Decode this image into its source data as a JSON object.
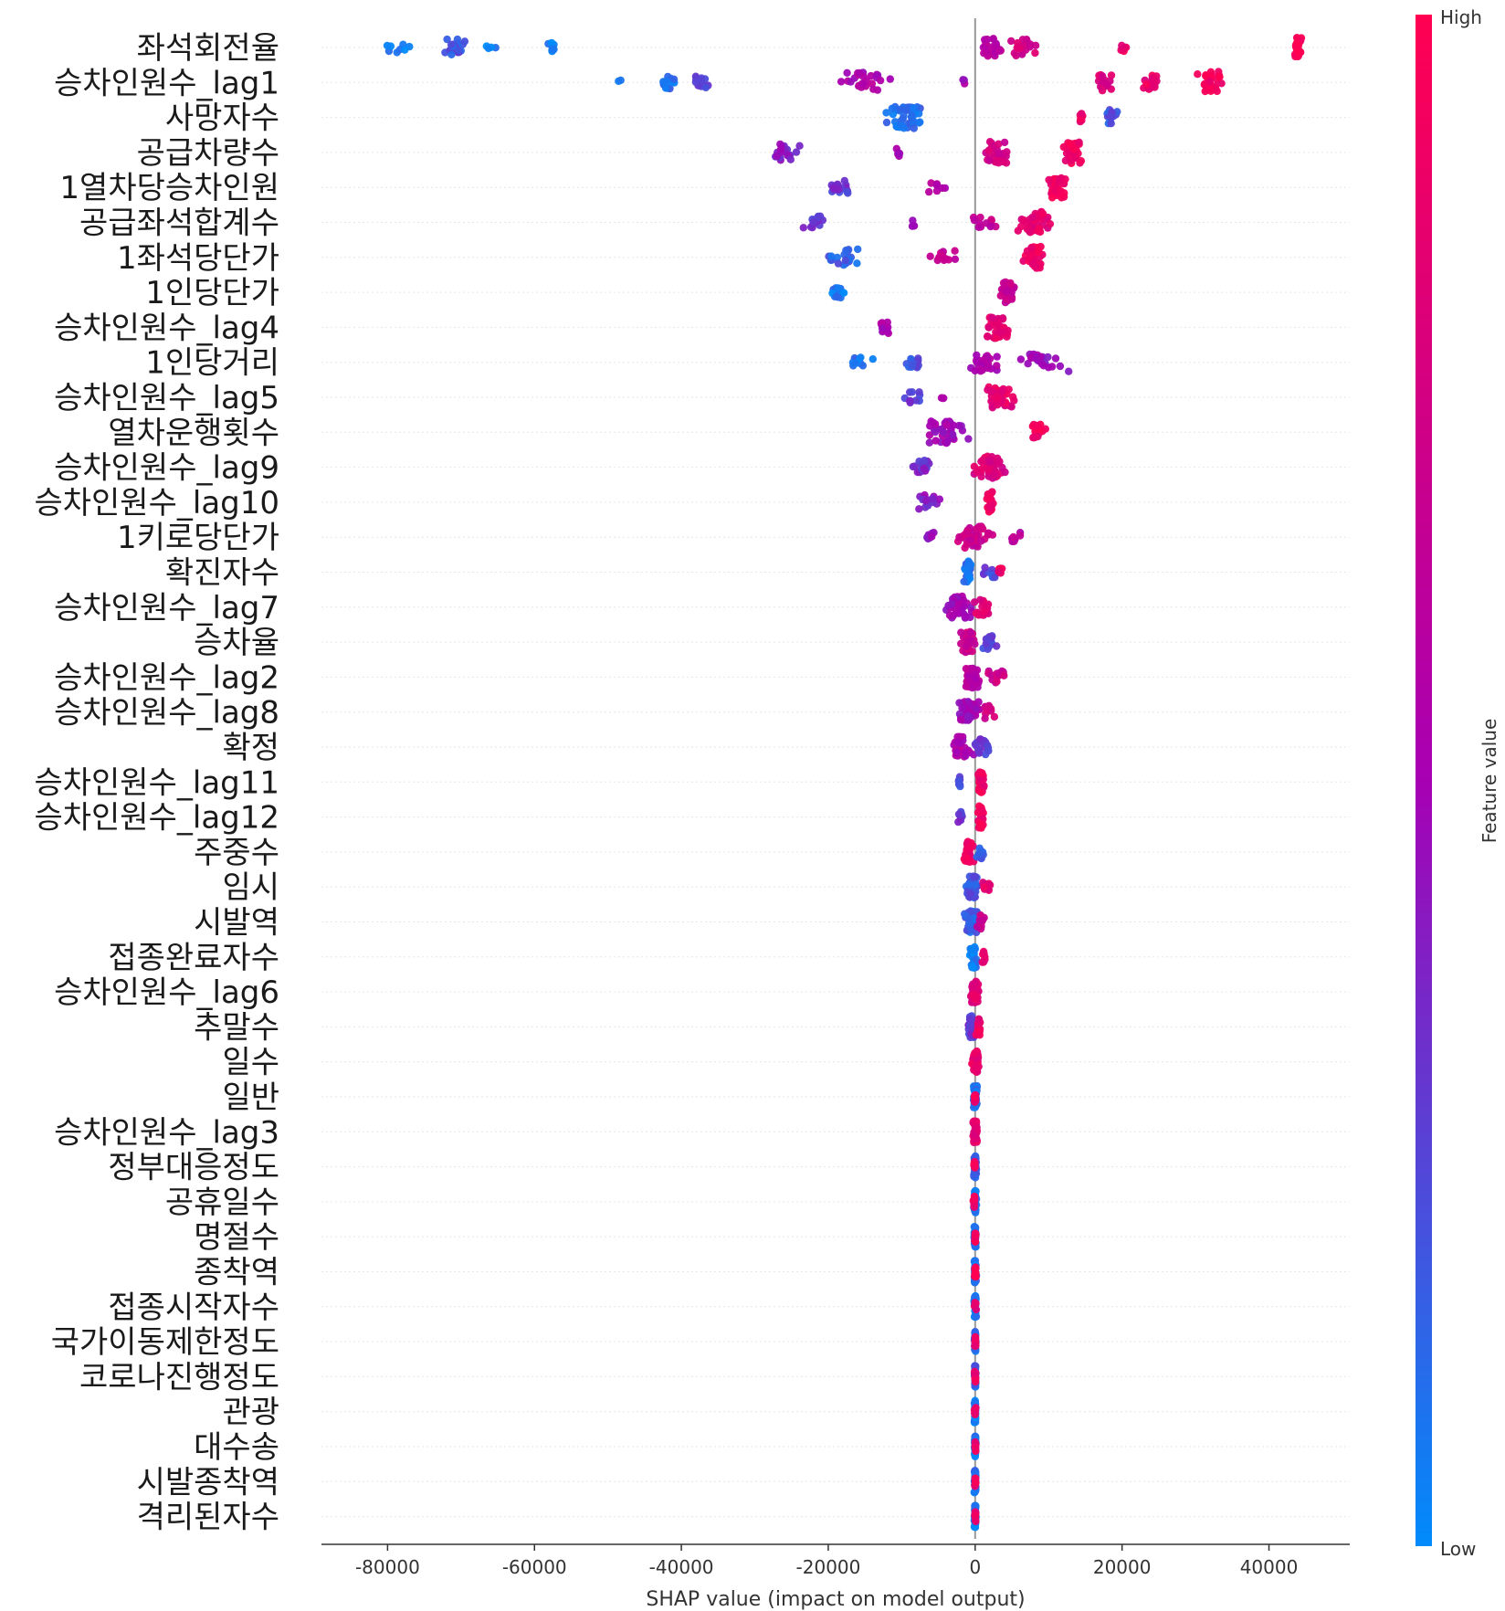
{
  "chart_data": {
    "type": "scatter",
    "subtype": "shap-beeswarm",
    "title": "",
    "xlabel": "SHAP value (impact on model output)",
    "xlim": [
      -89000,
      51000
    ],
    "xticks": [
      -80000,
      -60000,
      -40000,
      -20000,
      0,
      20000,
      40000
    ],
    "xtick_labels": [
      "-80000",
      "-60000",
      "-40000",
      "-20000",
      "0",
      "20000",
      "40000"
    ],
    "colorbar": {
      "label": "Feature value",
      "high_label": "High",
      "low_label": "Low",
      "high_color": "#ff0052",
      "low_color": "#008bfb"
    },
    "features": [
      {
        "name": "좌석회전율",
        "clusters": [
          {
            "x": -79000,
            "spread": 4500,
            "n": 8,
            "v": 0.05
          },
          {
            "x": -71000,
            "spread": 3000,
            "n": 20,
            "v": 0.2
          },
          {
            "x": -66000,
            "spread": 1500,
            "n": 4,
            "v": 0.05
          },
          {
            "x": -57500,
            "spread": 800,
            "n": 8,
            "v": 0.05
          },
          {
            "x": 2000,
            "spread": 3000,
            "n": 24,
            "v": 0.6
          },
          {
            "x": 6500,
            "spread": 2500,
            "n": 20,
            "v": 0.75
          },
          {
            "x": 20000,
            "spread": 1200,
            "n": 6,
            "v": 0.9
          },
          {
            "x": 44000,
            "spread": 800,
            "n": 26,
            "v": 0.98
          }
        ]
      },
      {
        "name": "승차인원수_lag1",
        "clusters": [
          {
            "x": -48500,
            "spread": 300,
            "n": 2,
            "v": 0.05
          },
          {
            "x": -42000,
            "spread": 1500,
            "n": 14,
            "v": 0.1
          },
          {
            "x": -37500,
            "spread": 1500,
            "n": 14,
            "v": 0.3
          },
          {
            "x": -15000,
            "spread": 4500,
            "n": 26,
            "v": 0.55
          },
          {
            "x": -1500,
            "spread": 500,
            "n": 3,
            "v": 0.5
          },
          {
            "x": 17500,
            "spread": 1500,
            "n": 20,
            "v": 0.8
          },
          {
            "x": 24000,
            "spread": 1500,
            "n": 20,
            "v": 0.88
          },
          {
            "x": 32000,
            "spread": 2000,
            "n": 30,
            "v": 0.95
          }
        ]
      },
      {
        "name": "사망자수",
        "clusters": [
          {
            "x": -9500,
            "spread": 3000,
            "n": 50,
            "v": 0.1
          },
          {
            "x": 14500,
            "spread": 700,
            "n": 8,
            "v": 0.9
          },
          {
            "x": 18500,
            "spread": 1500,
            "n": 18,
            "v": 0.2
          }
        ]
      },
      {
        "name": "공급차량수",
        "clusters": [
          {
            "x": -26000,
            "spread": 2500,
            "n": 20,
            "v": 0.4
          },
          {
            "x": -10500,
            "spread": 800,
            "n": 5,
            "v": 0.55
          },
          {
            "x": 3000,
            "spread": 2500,
            "n": 30,
            "v": 0.75
          },
          {
            "x": 13500,
            "spread": 2000,
            "n": 30,
            "v": 0.92
          }
        ]
      },
      {
        "name": "1열차당승차인원",
        "clusters": [
          {
            "x": -18500,
            "spread": 1700,
            "n": 20,
            "v": 0.3
          },
          {
            "x": -5000,
            "spread": 3000,
            "n": 8,
            "v": 0.6
          },
          {
            "x": 11000,
            "spread": 2000,
            "n": 34,
            "v": 0.92
          }
        ]
      },
      {
        "name": "공급좌석합계수",
        "clusters": [
          {
            "x": -22000,
            "spread": 2500,
            "n": 16,
            "v": 0.3
          },
          {
            "x": -8500,
            "spread": 800,
            "n": 4,
            "v": 0.5
          },
          {
            "x": 1000,
            "spread": 2500,
            "n": 12,
            "v": 0.65
          },
          {
            "x": 8000,
            "spread": 3500,
            "n": 40,
            "v": 0.85
          }
        ]
      },
      {
        "name": "1좌석당단가",
        "clusters": [
          {
            "x": -18500,
            "spread": 3000,
            "n": 20,
            "v": 0.15
          },
          {
            "x": -4000,
            "spread": 2800,
            "n": 14,
            "v": 0.7
          },
          {
            "x": 8000,
            "spread": 2000,
            "n": 40,
            "v": 0.93
          }
        ]
      },
      {
        "name": "1인당단가",
        "clusters": [
          {
            "x": -18500,
            "spread": 1500,
            "n": 14,
            "v": 0.05
          },
          {
            "x": 4500,
            "spread": 1500,
            "n": 30,
            "v": 0.65
          }
        ]
      },
      {
        "name": "승차인원수_lag4",
        "clusters": [
          {
            "x": -12500,
            "spread": 1200,
            "n": 12,
            "v": 0.55
          },
          {
            "x": 3000,
            "spread": 2200,
            "n": 40,
            "v": 0.85
          }
        ]
      },
      {
        "name": "1인당거리",
        "clusters": [
          {
            "x": -16000,
            "spread": 2500,
            "n": 10,
            "v": 0.08
          },
          {
            "x": -8500,
            "spread": 2500,
            "n": 14,
            "v": 0.2
          },
          {
            "x": 1500,
            "spread": 3000,
            "n": 24,
            "v": 0.55
          },
          {
            "x": 9500,
            "spread": 4000,
            "n": 24,
            "v": 0.45
          }
        ]
      },
      {
        "name": "승차인원수_lag5",
        "clusters": [
          {
            "x": -8500,
            "spread": 1500,
            "n": 10,
            "v": 0.3
          },
          {
            "x": -4500,
            "spread": 500,
            "n": 3,
            "v": 0.5
          },
          {
            "x": 3500,
            "spread": 2500,
            "n": 40,
            "v": 0.85
          }
        ]
      },
      {
        "name": "열차운행횟수",
        "clusters": [
          {
            "x": -4000,
            "spread": 3500,
            "n": 40,
            "v": 0.5
          },
          {
            "x": 8500,
            "spread": 1500,
            "n": 20,
            "v": 0.93
          }
        ]
      },
      {
        "name": "승차인원수_lag9",
        "clusters": [
          {
            "x": -7500,
            "spread": 2000,
            "n": 16,
            "v": 0.35
          },
          {
            "x": 2000,
            "spread": 3000,
            "n": 40,
            "v": 0.8
          }
        ]
      },
      {
        "name": "승차인원수_lag10",
        "clusters": [
          {
            "x": -6500,
            "spread": 2000,
            "n": 16,
            "v": 0.4
          },
          {
            "x": 2000,
            "spread": 700,
            "n": 28,
            "v": 0.92
          }
        ]
      },
      {
        "name": "1키로당단가",
        "clusters": [
          {
            "x": -6500,
            "spread": 1500,
            "n": 8,
            "v": 0.45
          },
          {
            "x": 0,
            "spread": 3000,
            "n": 40,
            "v": 0.7
          },
          {
            "x": 5500,
            "spread": 1000,
            "n": 8,
            "v": 0.6
          }
        ]
      },
      {
        "name": "확진자수",
        "clusters": [
          {
            "x": -1000,
            "spread": 700,
            "n": 30,
            "v": 0.1
          },
          {
            "x": 2000,
            "spread": 2000,
            "n": 10,
            "v": 0.25
          },
          {
            "x": 3500,
            "spread": 700,
            "n": 6,
            "v": 0.9
          }
        ]
      },
      {
        "name": "승차인원수_lag7",
        "clusters": [
          {
            "x": -2000,
            "spread": 2500,
            "n": 40,
            "v": 0.5
          },
          {
            "x": 1000,
            "spread": 1500,
            "n": 20,
            "v": 0.8
          }
        ]
      },
      {
        "name": "승차율",
        "clusters": [
          {
            "x": -1000,
            "spread": 1200,
            "n": 40,
            "v": 0.7
          },
          {
            "x": 2000,
            "spread": 1200,
            "n": 16,
            "v": 0.25
          }
        ]
      },
      {
        "name": "승차인원수_lag2",
        "clusters": [
          {
            "x": -500,
            "spread": 1500,
            "n": 40,
            "v": 0.6
          },
          {
            "x": 3000,
            "spread": 2000,
            "n": 16,
            "v": 0.7
          }
        ]
      },
      {
        "name": "승차인원수_lag8",
        "clusters": [
          {
            "x": -1000,
            "spread": 2000,
            "n": 40,
            "v": 0.5
          },
          {
            "x": 2000,
            "spread": 1000,
            "n": 14,
            "v": 0.75
          }
        ]
      },
      {
        "name": "확정",
        "clusters": [
          {
            "x": -2000,
            "spread": 2000,
            "n": 30,
            "v": 0.55
          },
          {
            "x": 1000,
            "spread": 1500,
            "n": 20,
            "v": 0.3
          }
        ]
      },
      {
        "name": "승차인원수_lag11",
        "clusters": [
          {
            "x": -2000,
            "spread": 500,
            "n": 10,
            "v": 0.25
          },
          {
            "x": 800,
            "spread": 700,
            "n": 30,
            "v": 0.9
          }
        ]
      },
      {
        "name": "승차인원수_lag12",
        "clusters": [
          {
            "x": -2000,
            "spread": 500,
            "n": 10,
            "v": 0.3
          },
          {
            "x": 800,
            "spread": 500,
            "n": 30,
            "v": 0.92
          }
        ]
      },
      {
        "name": "주중수",
        "clusters": [
          {
            "x": -1000,
            "spread": 900,
            "n": 40,
            "v": 0.9
          },
          {
            "x": 700,
            "spread": 500,
            "n": 14,
            "v": 0.2
          }
        ]
      },
      {
        "name": "임시",
        "clusters": [
          {
            "x": -500,
            "spread": 1300,
            "n": 40,
            "v": 0.2
          },
          {
            "x": 1500,
            "spread": 700,
            "n": 10,
            "v": 0.85
          }
        ]
      },
      {
        "name": "시발역",
        "clusters": [
          {
            "x": -500,
            "spread": 1300,
            "n": 40,
            "v": 0.15
          },
          {
            "x": 700,
            "spread": 700,
            "n": 16,
            "v": 0.65
          }
        ]
      },
      {
        "name": "접종완료자수",
        "clusters": [
          {
            "x": -300,
            "spread": 700,
            "n": 40,
            "v": 0.05
          },
          {
            "x": 1200,
            "spread": 500,
            "n": 10,
            "v": 0.9
          }
        ]
      },
      {
        "name": "승차인원수_lag6",
        "clusters": [
          {
            "x": 0,
            "spread": 700,
            "n": 50,
            "v": 0.82
          }
        ]
      },
      {
        "name": "추말수",
        "clusters": [
          {
            "x": -500,
            "spread": 700,
            "n": 30,
            "v": 0.3
          },
          {
            "x": 500,
            "spread": 500,
            "n": 20,
            "v": 0.9
          }
        ]
      },
      {
        "name": "일수",
        "clusters": [
          {
            "x": 0,
            "spread": 700,
            "n": 50,
            "v": 0.88
          }
        ]
      },
      {
        "name": "일반",
        "clusters": [
          {
            "x": 0,
            "spread": 400,
            "n": 40,
            "v": 0.1
          },
          {
            "x": 0,
            "spread": 300,
            "n": 10,
            "v": 0.9
          }
        ]
      },
      {
        "name": "승차인원수_lag3",
        "clusters": [
          {
            "x": 0,
            "spread": 400,
            "n": 50,
            "v": 0.85
          }
        ]
      },
      {
        "name": "정부대응정도",
        "clusters": [
          {
            "x": 0,
            "spread": 300,
            "n": 40,
            "v": 0.15
          },
          {
            "x": -100,
            "spread": 200,
            "n": 10,
            "v": 0.9
          }
        ]
      },
      {
        "name": "공휴일수",
        "clusters": [
          {
            "x": 0,
            "spread": 300,
            "n": 40,
            "v": 0.1
          },
          {
            "x": -100,
            "spread": 200,
            "n": 10,
            "v": 0.9
          }
        ]
      },
      {
        "name": "명절수",
        "clusters": [
          {
            "x": 0,
            "spread": 200,
            "n": 40,
            "v": 0.1
          },
          {
            "x": 0,
            "spread": 150,
            "n": 10,
            "v": 0.95
          }
        ]
      },
      {
        "name": "종착역",
        "clusters": [
          {
            "x": 0,
            "spread": 200,
            "n": 40,
            "v": 0.1
          },
          {
            "x": 0,
            "spread": 150,
            "n": 10,
            "v": 0.95
          }
        ]
      },
      {
        "name": "접종시작자수",
        "clusters": [
          {
            "x": 0,
            "spread": 200,
            "n": 40,
            "v": 0.05
          },
          {
            "x": 0,
            "spread": 150,
            "n": 6,
            "v": 0.9
          }
        ]
      },
      {
        "name": "국가이동제한정도",
        "clusters": [
          {
            "x": 0,
            "spread": 150,
            "n": 40,
            "v": 0.15
          },
          {
            "x": 0,
            "spread": 150,
            "n": 10,
            "v": 0.9
          }
        ]
      },
      {
        "name": "코로나진행정도",
        "clusters": [
          {
            "x": 0,
            "spread": 150,
            "n": 40,
            "v": 0.15
          },
          {
            "x": 0,
            "spread": 150,
            "n": 10,
            "v": 0.9
          }
        ]
      },
      {
        "name": "관광",
        "clusters": [
          {
            "x": 0,
            "spread": 150,
            "n": 40,
            "v": 0.05
          },
          {
            "x": 0,
            "spread": 150,
            "n": 6,
            "v": 0.9
          }
        ]
      },
      {
        "name": "대수송",
        "clusters": [
          {
            "x": 0,
            "spread": 150,
            "n": 40,
            "v": 0.05
          },
          {
            "x": 0,
            "spread": 150,
            "n": 8,
            "v": 0.9
          }
        ]
      },
      {
        "name": "시발종착역",
        "clusters": [
          {
            "x": 0,
            "spread": 150,
            "n": 40,
            "v": 0.1
          },
          {
            "x": 0,
            "spread": 150,
            "n": 8,
            "v": 0.9
          }
        ]
      },
      {
        "name": "격리된자수",
        "clusters": [
          {
            "x": 0,
            "spread": 150,
            "n": 40,
            "v": 0.05
          },
          {
            "x": 0,
            "spread": 150,
            "n": 8,
            "v": 0.9
          }
        ]
      }
    ]
  }
}
